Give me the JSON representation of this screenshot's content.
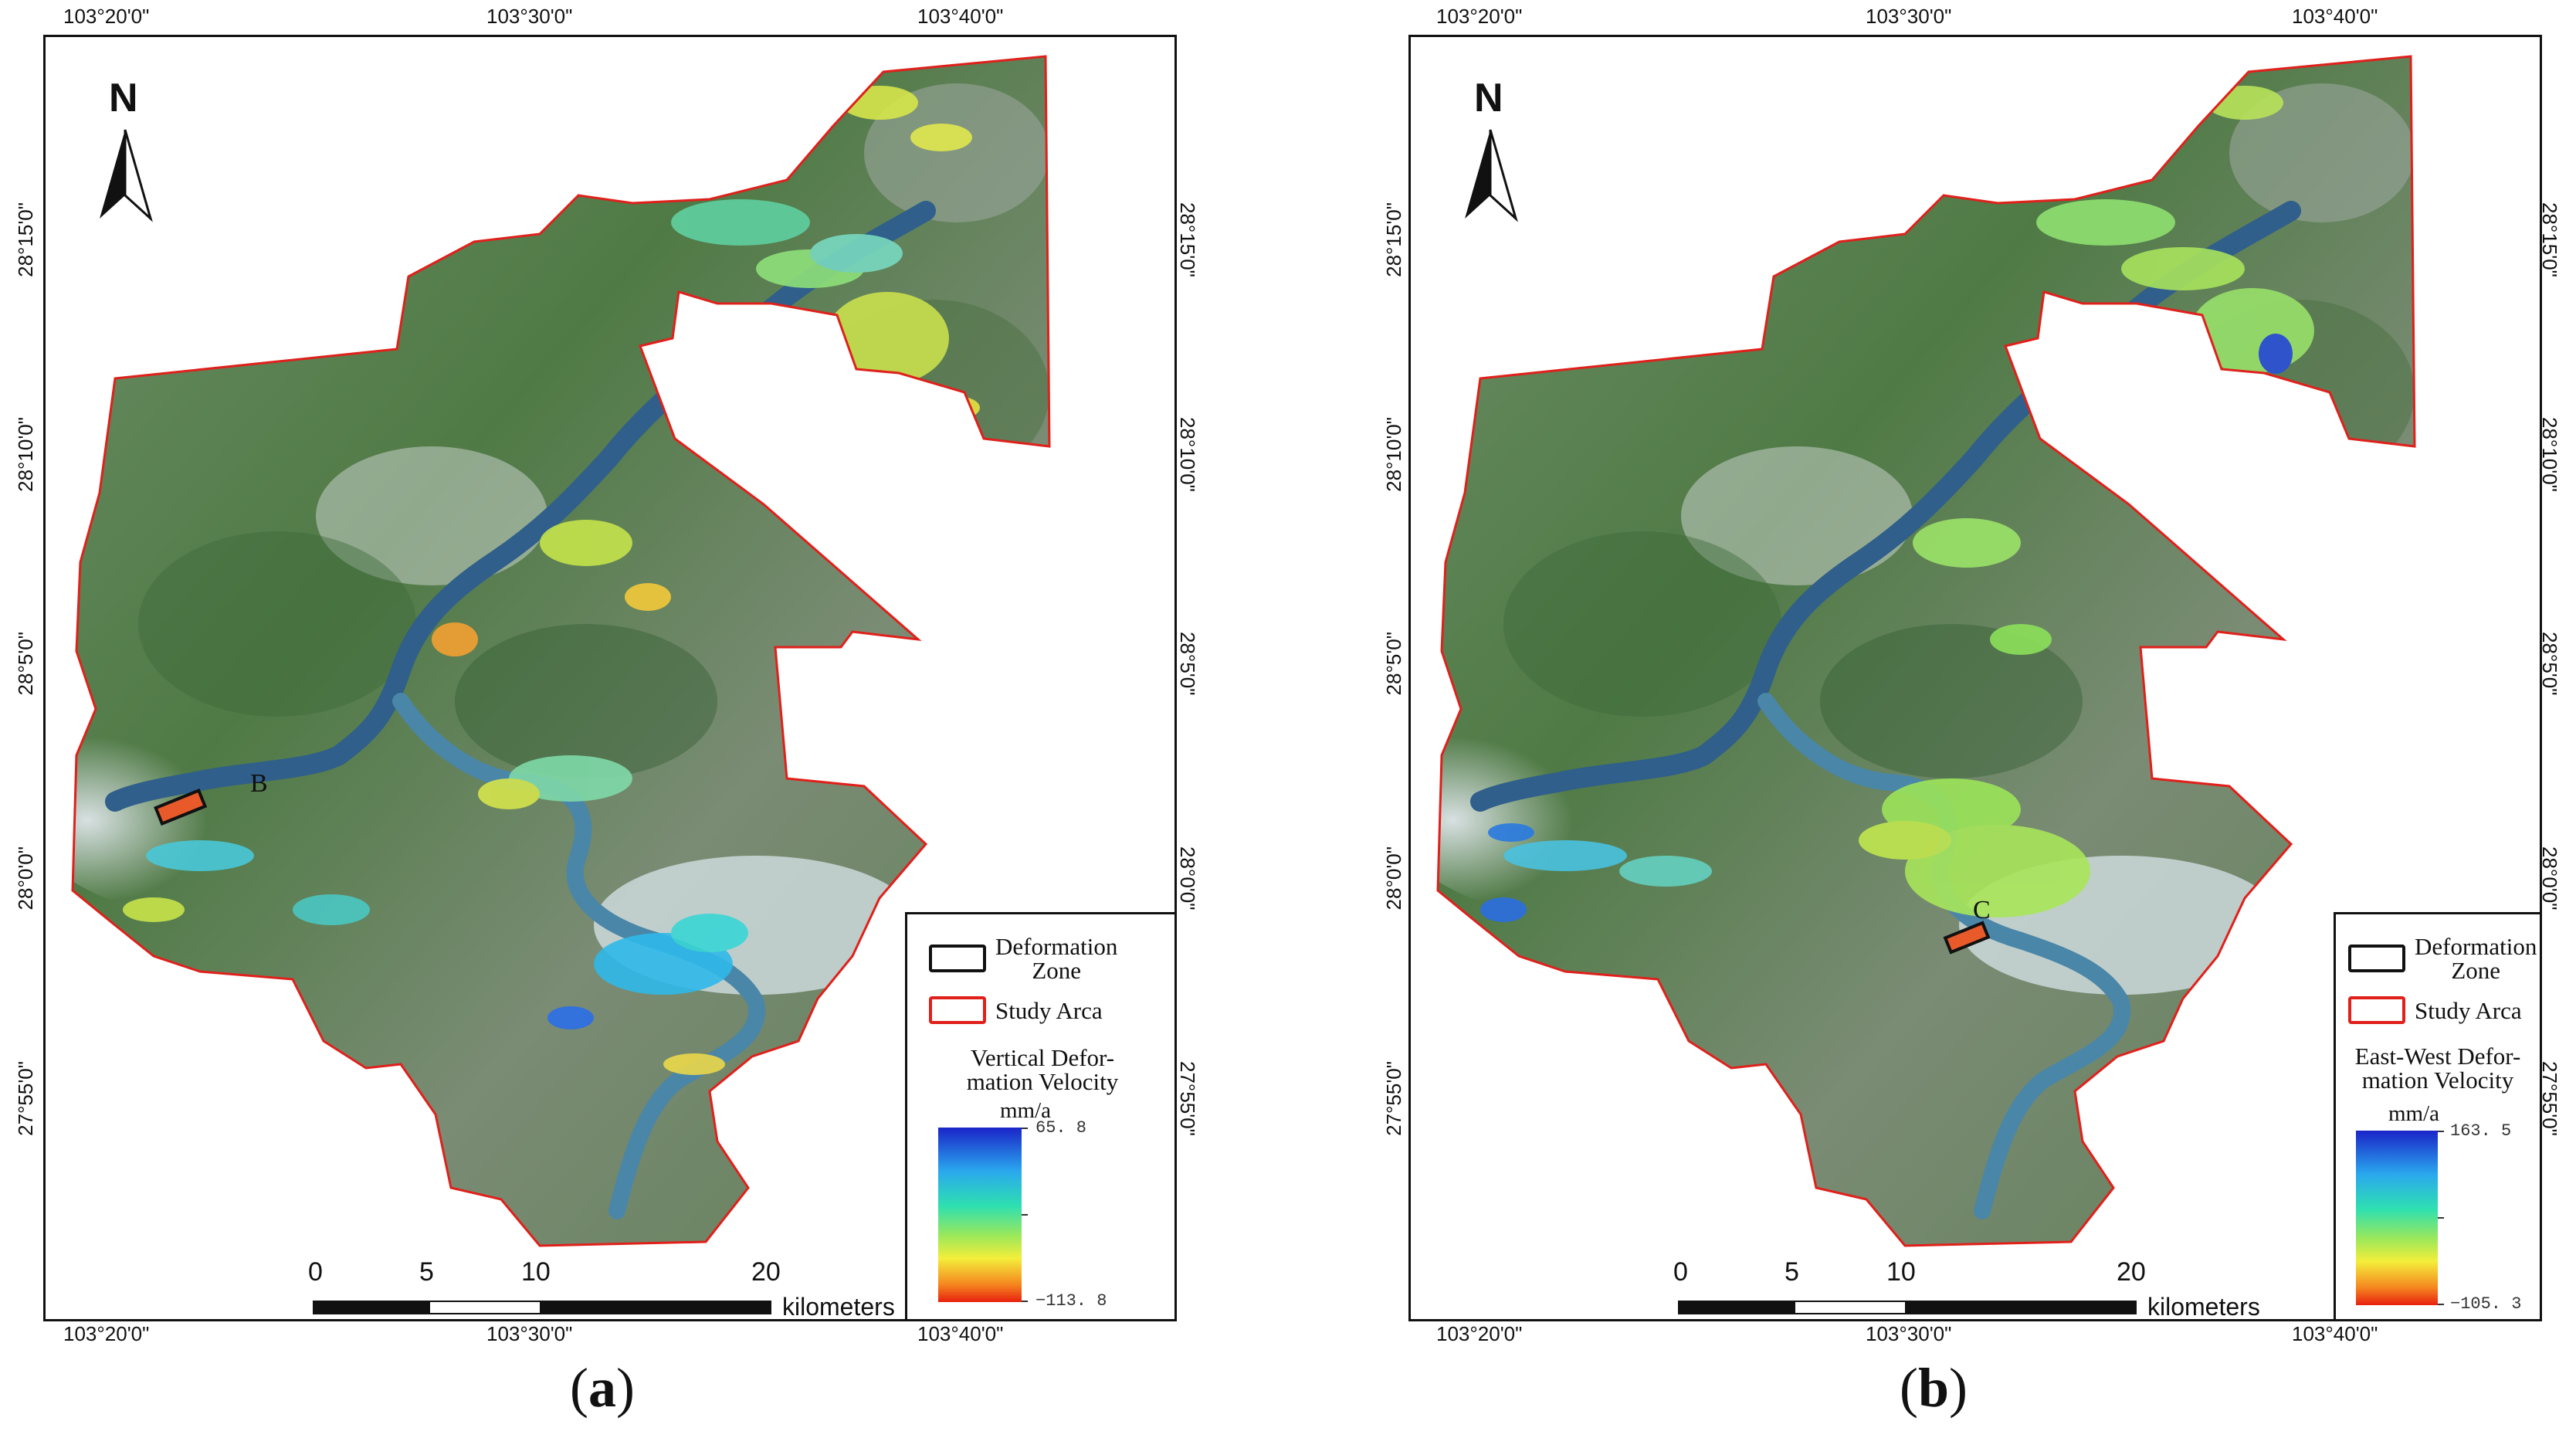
{
  "panels": [
    {
      "id": "a",
      "label_open": "(",
      "label_letter": "a",
      "label_close": ")",
      "north_label": "N",
      "top_longitudes": [
        "103°20'0\"",
        "103°30'0\"",
        "103°40'0\""
      ],
      "bottom_longitudes": [
        "103°20'0\"",
        "103°30'0\"",
        "103°40'0\""
      ],
      "left_latitudes": [
        "28°15'0\"",
        "28°10'0\"",
        "28°5'0\"",
        "28°0'0\"",
        "27°55'0\""
      ],
      "right_latitudes": [
        "28°15'0\"",
        "28°10'0\"",
        "28°5'0\"",
        "28°0'0\"",
        "27°55'0\""
      ],
      "deformation_zone_label": "B",
      "legend": {
        "zone_label": "Deformation Zone",
        "zone_line1": "Deformation",
        "zone_line2": "Zone",
        "study_label": "Study Arca",
        "velocity_title_line1": "Vertical Defor-",
        "velocity_title_line2": "mation Velocity",
        "unit": "mm/a",
        "max_value": "65. 8",
        "min_value": "−113. 8",
        "zone_color": "#111111",
        "study_color": "#e0201b"
      },
      "scale_bar": {
        "ticks": [
          "0",
          "5",
          "10",
          "20"
        ],
        "unit": "kilometers"
      }
    },
    {
      "id": "b",
      "label_open": "(",
      "label_letter": "b",
      "label_close": ")",
      "north_label": "N",
      "top_longitudes": [
        "103°20'0\"",
        "103°30'0\"",
        "103°40'0\""
      ],
      "bottom_longitudes": [
        "103°20'0\"",
        "103°30'0\"",
        "103°40'0\""
      ],
      "left_latitudes": [
        "28°15'0\"",
        "28°10'0\"",
        "28°5'0\"",
        "28°0'0\"",
        "27°55'0\""
      ],
      "right_latitudes": [
        "28°15'0\"",
        "28°10'0\"",
        "28°5'0\"",
        "28°0'0\"",
        "27°55'0\""
      ],
      "deformation_zone_label": "C",
      "legend": {
        "zone_label": "Deformation Zone",
        "zone_line1": "Deformation",
        "zone_line2": "Zone",
        "study_label": "Study Arca",
        "velocity_title_line1": "East-West Defor-",
        "velocity_title_line2": "mation Velocity",
        "unit": "mm/a",
        "max_value": "163. 5",
        "min_value": "−105. 3",
        "zone_color": "#111111",
        "study_color": "#e0201b"
      },
      "scale_bar": {
        "ticks": [
          "0",
          "5",
          "10",
          "20"
        ],
        "unit": "kilometers"
      }
    }
  ],
  "colors": {
    "study_boundary": "#e0201b",
    "river": "#2f5f8a",
    "terrain_green": "#4f7a45",
    "terrain_light": "#c9d3cf",
    "ramp_top": "#1a24c8",
    "ramp_bottom": "#e8200f"
  }
}
